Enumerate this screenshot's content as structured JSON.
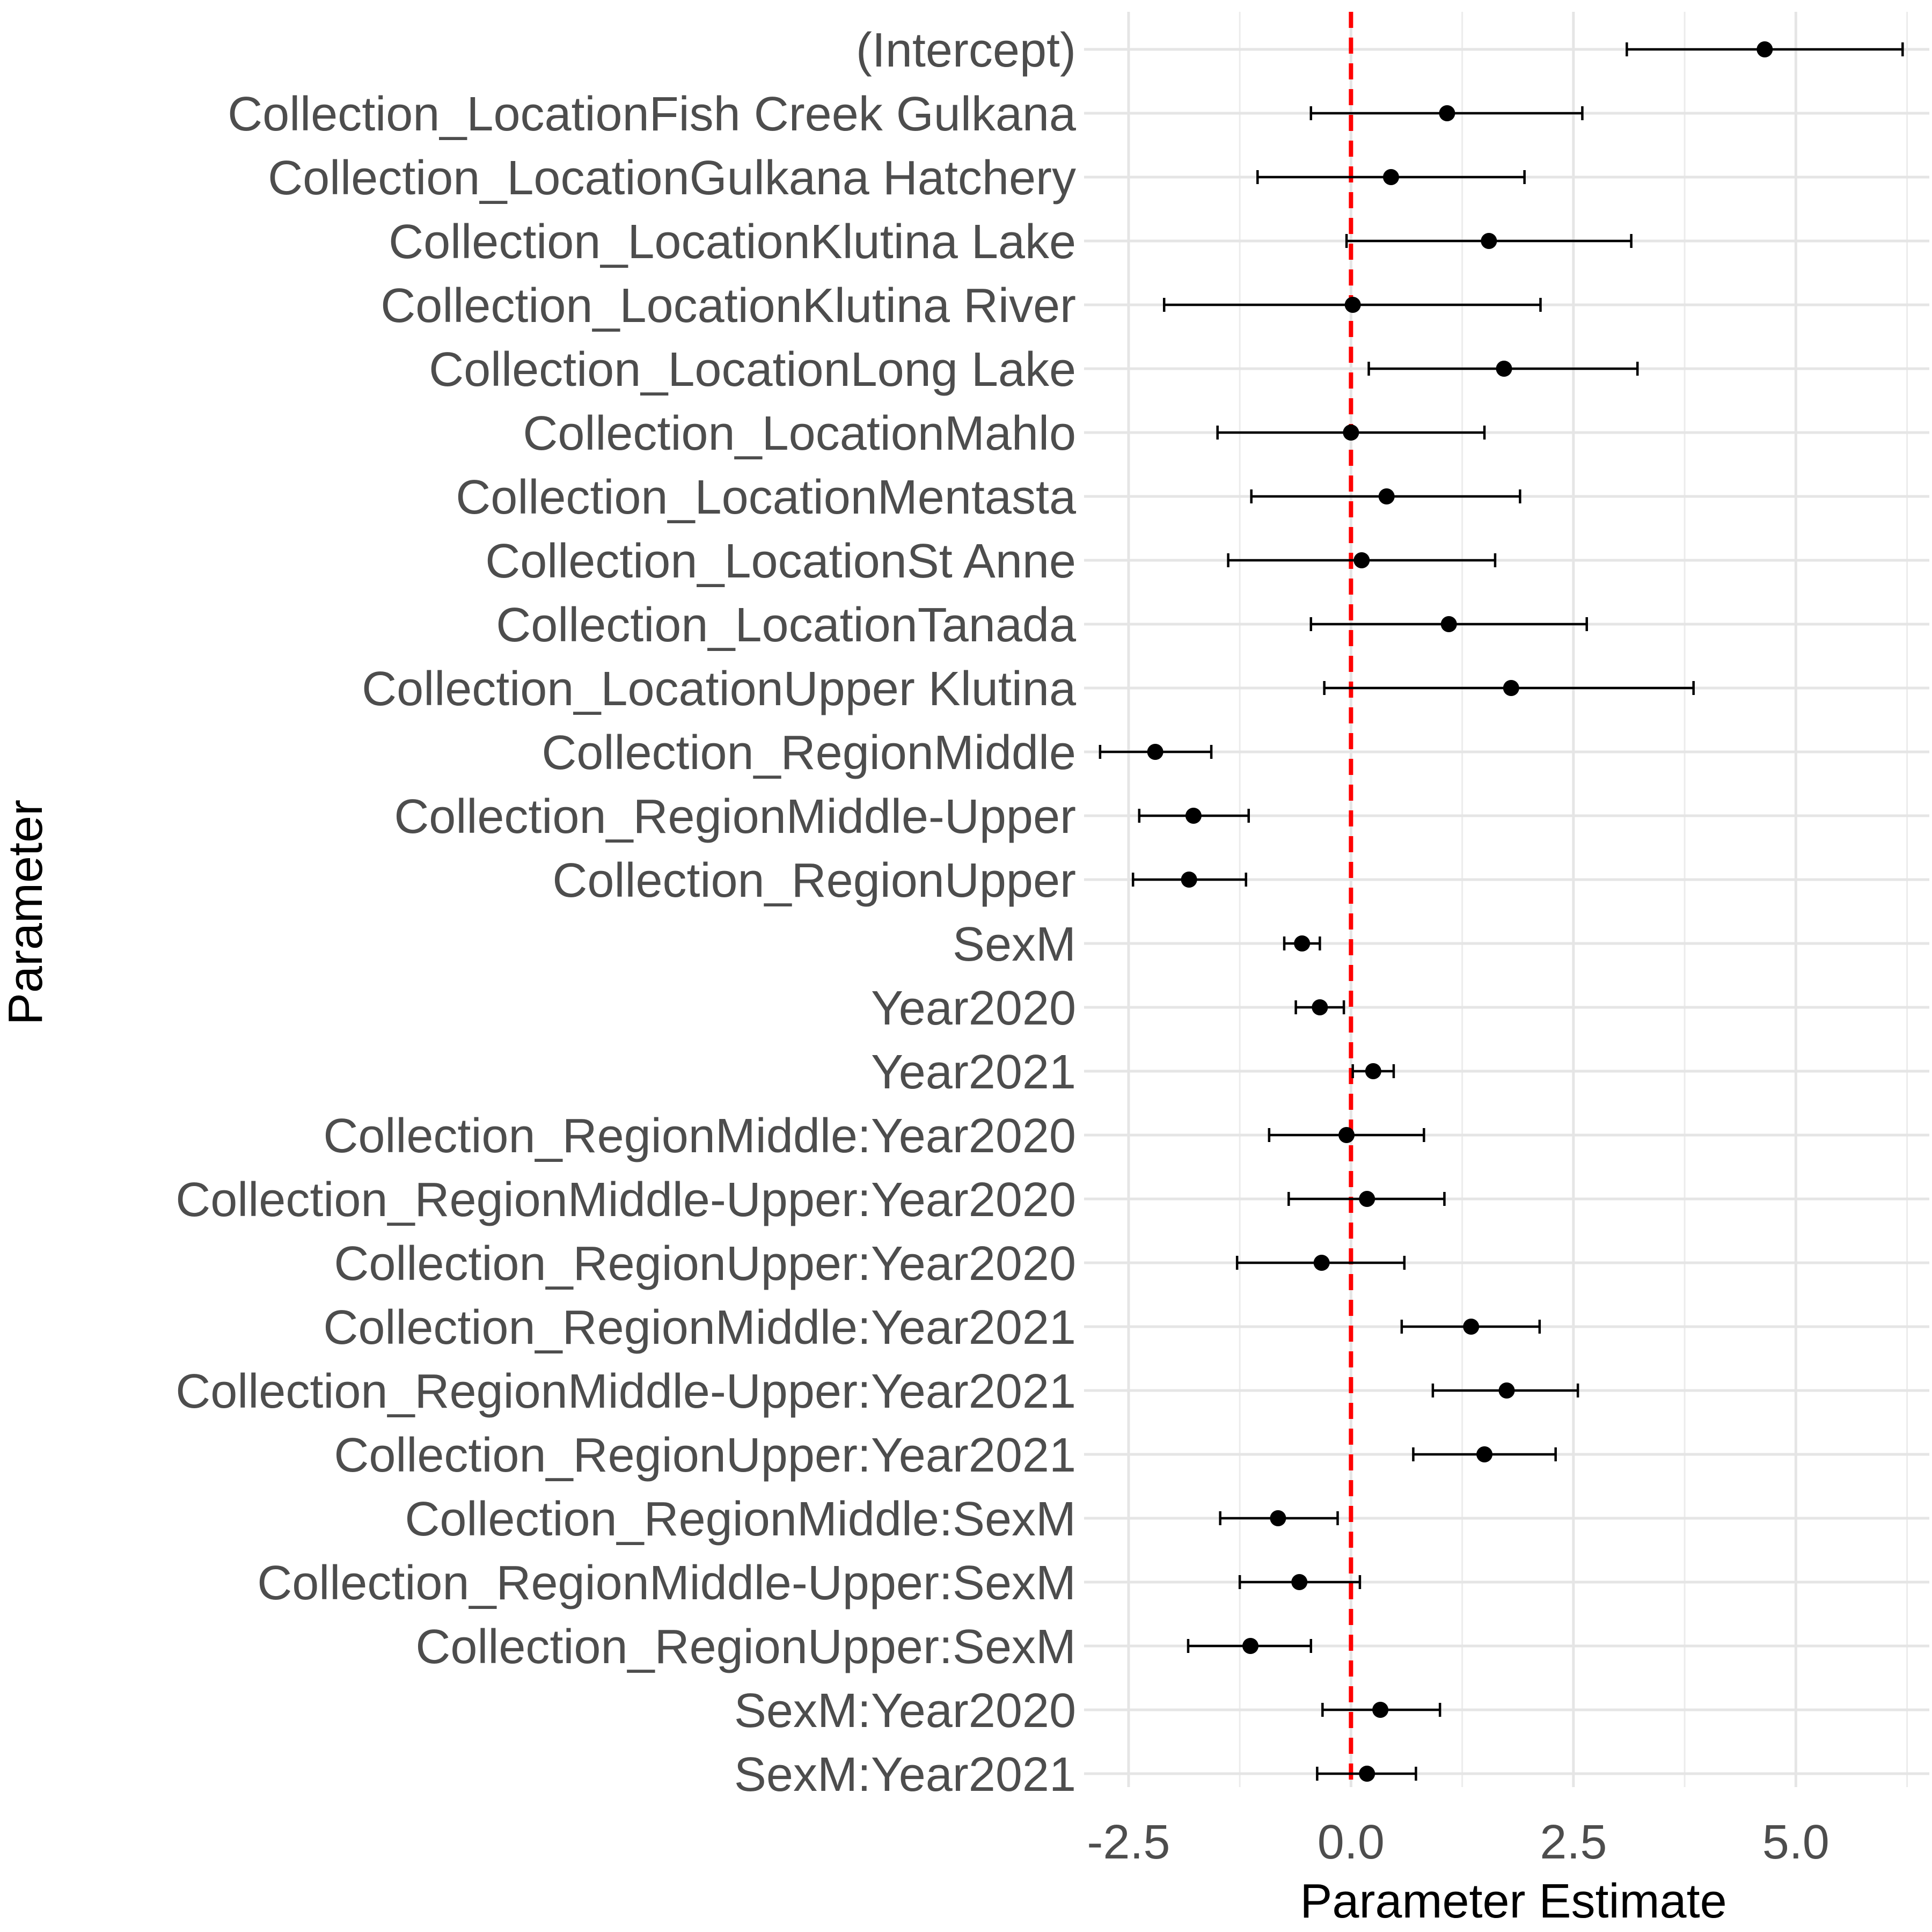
{
  "chart_data": {
    "type": "scatter",
    "subtype": "coefficient-plot-with-error-bars",
    "title": "",
    "xlabel": "Parameter Estimate",
    "ylabel": "Parameter",
    "xlim": [
      -3.0,
      6.5
    ],
    "x_ticks": [
      -2.5,
      0.0,
      2.5,
      5.0
    ],
    "x_tick_labels": [
      "-2.5",
      "0.0",
      "2.5",
      "5.0"
    ],
    "reference_line": {
      "x": 0,
      "color": "#ff0000",
      "style": "dashed"
    },
    "grid": true,
    "legend": "none",
    "point_color": "#000000",
    "errorbar_color": "#000000",
    "points": [
      {
        "label": "(Intercept)",
        "estimate": 4.65,
        "lower": 3.1,
        "upper": 6.2
      },
      {
        "label": "Collection_LocationFish Creek Gulkana",
        "estimate": 1.08,
        "lower": -0.45,
        "upper": 2.6
      },
      {
        "label": "Collection_LocationGulkana Hatchery",
        "estimate": 0.45,
        "lower": -1.05,
        "upper": 1.95
      },
      {
        "label": "Collection_LocationKlutina Lake",
        "estimate": 1.55,
        "lower": -0.05,
        "upper": 3.15
      },
      {
        "label": "Collection_LocationKlutina River",
        "estimate": 0.02,
        "lower": -2.1,
        "upper": 2.13
      },
      {
        "label": "Collection_LocationLong Lake",
        "estimate": 1.72,
        "lower": 0.2,
        "upper": 3.22
      },
      {
        "label": "Collection_LocationMahlo",
        "estimate": 0.0,
        "lower": -1.5,
        "upper": 1.5
      },
      {
        "label": "Collection_LocationMentasta",
        "estimate": 0.4,
        "lower": -1.12,
        "upper": 1.9
      },
      {
        "label": "Collection_LocationSt Anne",
        "estimate": 0.12,
        "lower": -1.38,
        "upper": 1.62
      },
      {
        "label": "Collection_LocationTanada",
        "estimate": 1.1,
        "lower": -0.45,
        "upper": 2.65
      },
      {
        "label": "Collection_LocationUpper Klutina",
        "estimate": 1.8,
        "lower": -0.3,
        "upper": 3.85
      },
      {
        "label": "Collection_RegionMiddle",
        "estimate": -2.2,
        "lower": -2.82,
        "upper": -1.57
      },
      {
        "label": "Collection_RegionMiddle-Upper",
        "estimate": -1.77,
        "lower": -2.38,
        "upper": -1.15
      },
      {
        "label": "Collection_RegionUpper",
        "estimate": -1.82,
        "lower": -2.45,
        "upper": -1.18
      },
      {
        "label": "SexM",
        "estimate": -0.55,
        "lower": -0.75,
        "upper": -0.35
      },
      {
        "label": "Year2020",
        "estimate": -0.35,
        "lower": -0.62,
        "upper": -0.08
      },
      {
        "label": "Year2021",
        "estimate": 0.25,
        "lower": 0.02,
        "upper": 0.48
      },
      {
        "label": "Collection_RegionMiddle:Year2020",
        "estimate": -0.05,
        "lower": -0.92,
        "upper": 0.82
      },
      {
        "label": "Collection_RegionMiddle-Upper:Year2020",
        "estimate": 0.18,
        "lower": -0.7,
        "upper": 1.05
      },
      {
        "label": "Collection_RegionUpper:Year2020",
        "estimate": -0.33,
        "lower": -1.28,
        "upper": 0.6
      },
      {
        "label": "Collection_RegionMiddle:Year2021",
        "estimate": 1.35,
        "lower": 0.57,
        "upper": 2.12
      },
      {
        "label": "Collection_RegionMiddle-Upper:Year2021",
        "estimate": 1.75,
        "lower": 0.92,
        "upper": 2.55
      },
      {
        "label": "Collection_RegionUpper:Year2021",
        "estimate": 1.5,
        "lower": 0.7,
        "upper": 2.3
      },
      {
        "label": "Collection_RegionMiddle:SexM",
        "estimate": -0.82,
        "lower": -1.47,
        "upper": -0.15
      },
      {
        "label": "Collection_RegionMiddle-Upper:SexM",
        "estimate": -0.58,
        "lower": -1.25,
        "upper": 0.1
      },
      {
        "label": "Collection_RegionUpper:SexM",
        "estimate": -1.13,
        "lower": -1.83,
        "upper": -0.45
      },
      {
        "label": "SexM:Year2020",
        "estimate": 0.33,
        "lower": -0.32,
        "upper": 1.0
      },
      {
        "label": "SexM:Year2021",
        "estimate": 0.18,
        "lower": -0.38,
        "upper": 0.73
      }
    ]
  }
}
